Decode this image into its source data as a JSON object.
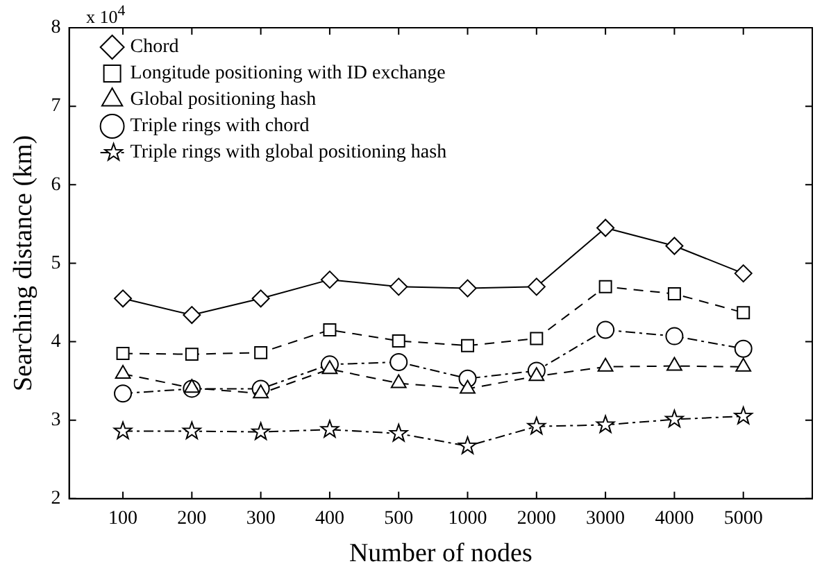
{
  "chart_data": {
    "type": "line",
    "xlabel": "Number of nodes",
    "ylabel": "Searching distance (km)",
    "annotations": [
      "x 10$^{4}$"
    ],
    "categories": [
      "100",
      "200",
      "300",
      "400",
      "500",
      "1000",
      "2000",
      "3000",
      "4000",
      "5000"
    ],
    "ylim": [
      2,
      8
    ],
    "yticks": [
      2,
      3,
      4,
      5,
      6,
      7,
      8
    ],
    "grid": false,
    "legend": "top left",
    "series": [
      {
        "name": "Chord",
        "color": "#000000",
        "marker": "diamond",
        "line_style": "solid",
        "values": [
          4.55,
          4.34,
          4.55,
          4.79,
          4.7,
          4.68,
          4.7,
          5.45,
          5.22,
          4.87
        ]
      },
      {
        "name": "Longitude positioning with ID exchange",
        "color": "#000000",
        "marker": "square",
        "line_style": "dashed",
        "values": [
          3.85,
          3.84,
          3.86,
          4.15,
          4.01,
          3.95,
          4.04,
          4.7,
          4.61,
          4.37
        ]
      },
      {
        "name": "Global positioning hash",
        "color": "#000000",
        "marker": "triangle",
        "line_style": "dashed",
        "values": [
          3.59,
          3.41,
          3.34,
          3.65,
          3.47,
          3.4,
          3.56,
          3.68,
          3.69,
          3.68
        ]
      },
      {
        "name": "Triple rings with chord",
        "color": "#000000",
        "marker": "circle",
        "line_style": "dashdot",
        "values": [
          3.34,
          3.4,
          3.4,
          3.71,
          3.74,
          3.53,
          3.63,
          4.15,
          4.07,
          3.91
        ]
      },
      {
        "name": "Triple rings with global positioning hash",
        "color": "#000000",
        "marker": "star",
        "line_style": "dashdot",
        "values": [
          2.86,
          2.86,
          2.85,
          2.88,
          2.83,
          2.67,
          2.92,
          2.94,
          3.01,
          3.05
        ]
      }
    ]
  }
}
